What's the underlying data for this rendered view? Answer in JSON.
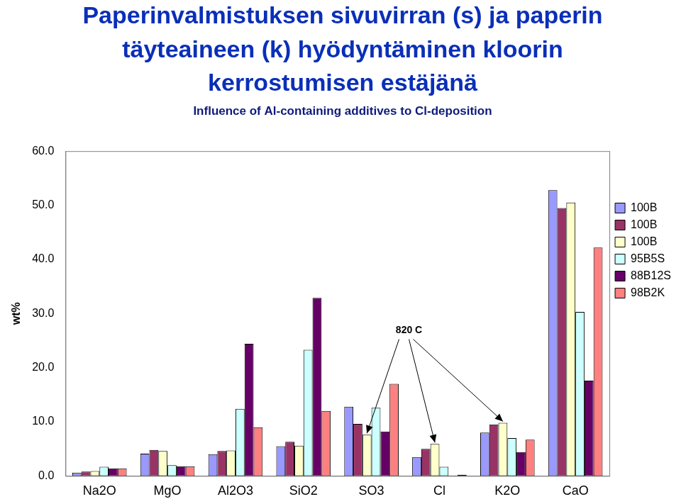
{
  "chart_data": {
    "type": "bar",
    "title": [
      "Paperinvalmistuksen sivuvirran (s) ja paperin",
      "täyteaineen (k) hyödyntäminen kloorin",
      "kerrostumisen estäjänä"
    ],
    "subtitle": "Influence of Al-containing additives to Cl-deposition",
    "y_label": "wt%",
    "annotation": "820 C",
    "categories": [
      "Na2O",
      "MgO",
      "Al2O3",
      "SiO2",
      "SO3",
      "Cl",
      "K2O",
      "CaO"
    ],
    "series": [
      {
        "name": "100B",
        "color": "#9999ff",
        "values": [
          0.6,
          4.1,
          4.0,
          5.5,
          12.8,
          3.5,
          8.0,
          52.8
        ]
      },
      {
        "name": "100B",
        "color": "#993366",
        "values": [
          0.8,
          4.8,
          4.6,
          6.3,
          9.6,
          5.0,
          9.5,
          49.5
        ]
      },
      {
        "name": "100B",
        "color": "#ffffcc",
        "values": [
          0.9,
          4.6,
          4.7,
          5.6,
          7.6,
          5.9,
          9.8,
          50.5
        ]
      },
      {
        "name": "95B5S",
        "color": "#ccffff",
        "values": [
          1.7,
          2.0,
          12.4,
          23.3,
          12.6,
          1.7,
          7.0,
          30.3
        ]
      },
      {
        "name": "88B12S",
        "color": "#660066",
        "values": [
          1.4,
          1.8,
          24.4,
          32.9,
          8.2,
          0.1,
          4.4,
          17.6
        ]
      },
      {
        "name": "98B2K",
        "color": "#ff8080",
        "values": [
          1.4,
          1.8,
          9.0,
          12.0,
          17.0,
          0.2,
          6.7,
          42.2
        ]
      }
    ],
    "ylim": [
      0,
      60
    ],
    "yticks": [
      {
        "value": 0,
        "label": "0.0"
      },
      {
        "value": 10,
        "label": "10.0"
      },
      {
        "value": 20,
        "label": "20.0"
      },
      {
        "value": 30,
        "label": "30.0"
      },
      {
        "value": 40,
        "label": "40.0"
      },
      {
        "value": 50,
        "label": "50.0"
      },
      {
        "value": 60,
        "label": "60.0"
      }
    ],
    "grid": false,
    "legend": "right"
  }
}
